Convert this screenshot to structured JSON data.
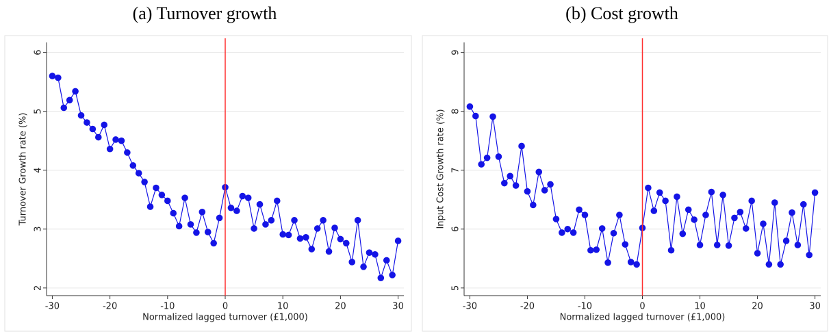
{
  "chart_data": [
    {
      "type": "line",
      "title": "(a) Turnover growth",
      "xlabel": "Normalized lagged turnover (£1,000)",
      "ylabel": "Turnover Growth rate (%)",
      "x": [
        -30,
        -29,
        -28,
        -27,
        -26,
        -25,
        -24,
        -23,
        -22,
        -21,
        -20,
        -19,
        -18,
        -17,
        -16,
        -15,
        -14,
        -13,
        -12,
        -11,
        -10,
        -9,
        -8,
        -7,
        -6,
        -5,
        -4,
        -3,
        -2,
        -1,
        0,
        1,
        2,
        3,
        4,
        5,
        6,
        7,
        8,
        9,
        10,
        11,
        12,
        13,
        14,
        15,
        16,
        17,
        18,
        19,
        20,
        21,
        22,
        23,
        24,
        25,
        26,
        27,
        28,
        29,
        30
      ],
      "values": [
        5.6,
        5.57,
        5.06,
        5.19,
        5.34,
        4.93,
        4.81,
        4.7,
        4.56,
        4.77,
        4.36,
        4.52,
        4.5,
        4.3,
        4.08,
        3.95,
        3.8,
        3.38,
        3.7,
        3.58,
        3.48,
        3.27,
        3.05,
        3.53,
        3.08,
        2.94,
        3.29,
        2.95,
        2.76,
        3.19,
        3.71,
        3.36,
        3.31,
        3.56,
        3.53,
        3.01,
        3.42,
        3.08,
        3.15,
        3.48,
        2.91,
        2.9,
        3.15,
        2.84,
        2.86,
        2.66,
        3.01,
        3.15,
        2.62,
        3.02,
        2.83,
        2.76,
        2.44,
        3.15,
        2.36,
        2.6,
        2.57,
        2.17,
        2.47,
        2.22,
        2.8
      ],
      "color": "#1414e6",
      "vline": 0,
      "vline_color": "#ff3030",
      "xlim": [
        -31,
        31
      ],
      "ylim": [
        1.87,
        6.17
      ],
      "xticks": [
        -30,
        -20,
        -10,
        0,
        10,
        20,
        30
      ],
      "yticks": [
        2,
        3,
        4,
        5,
        6
      ],
      "grid": true
    },
    {
      "type": "line",
      "title": "(b) Cost growth",
      "xlabel": "Normalized lagged turnover (£1,000)",
      "ylabel": "Input Cost Growth rate (%)",
      "x": [
        -30,
        -29,
        -28,
        -27,
        -26,
        -25,
        -24,
        -23,
        -22,
        -21,
        -20,
        -19,
        -18,
        -17,
        -16,
        -15,
        -14,
        -13,
        -12,
        -11,
        -10,
        -9,
        -8,
        -7,
        -6,
        -5,
        -4,
        -3,
        -2,
        -1,
        0,
        1,
        2,
        3,
        4,
        5,
        6,
        7,
        8,
        9,
        10,
        11,
        12,
        13,
        14,
        15,
        16,
        17,
        18,
        19,
        20,
        21,
        22,
        23,
        24,
        25,
        26,
        27,
        28,
        29,
        30
      ],
      "values": [
        8.08,
        7.92,
        7.1,
        7.21,
        7.91,
        7.23,
        6.78,
        6.9,
        6.74,
        7.41,
        6.64,
        6.41,
        6.97,
        6.66,
        6.76,
        6.17,
        5.94,
        6.0,
        5.94,
        6.33,
        6.24,
        5.64,
        5.65,
        6.01,
        5.43,
        5.93,
        6.24,
        5.74,
        5.44,
        5.4,
        6.02,
        6.7,
        6.31,
        6.62,
        6.48,
        5.64,
        6.55,
        5.92,
        6.33,
        6.16,
        5.73,
        6.24,
        6.63,
        5.73,
        6.58,
        5.72,
        6.19,
        6.29,
        6.01,
        6.48,
        5.59,
        6.09,
        5.4,
        6.45,
        5.4,
        5.8,
        6.28,
        5.73,
        6.42,
        5.56,
        6.62
      ],
      "color": "#1414e6",
      "vline": 0,
      "vline_color": "#ff3030",
      "xlim": [
        -31,
        31
      ],
      "ylim": [
        4.87,
        9.17
      ],
      "xticks": [
        -30,
        -20,
        -10,
        0,
        10,
        20,
        30
      ],
      "yticks": [
        5,
        6,
        7,
        8,
        9
      ],
      "grid": true
    }
  ]
}
